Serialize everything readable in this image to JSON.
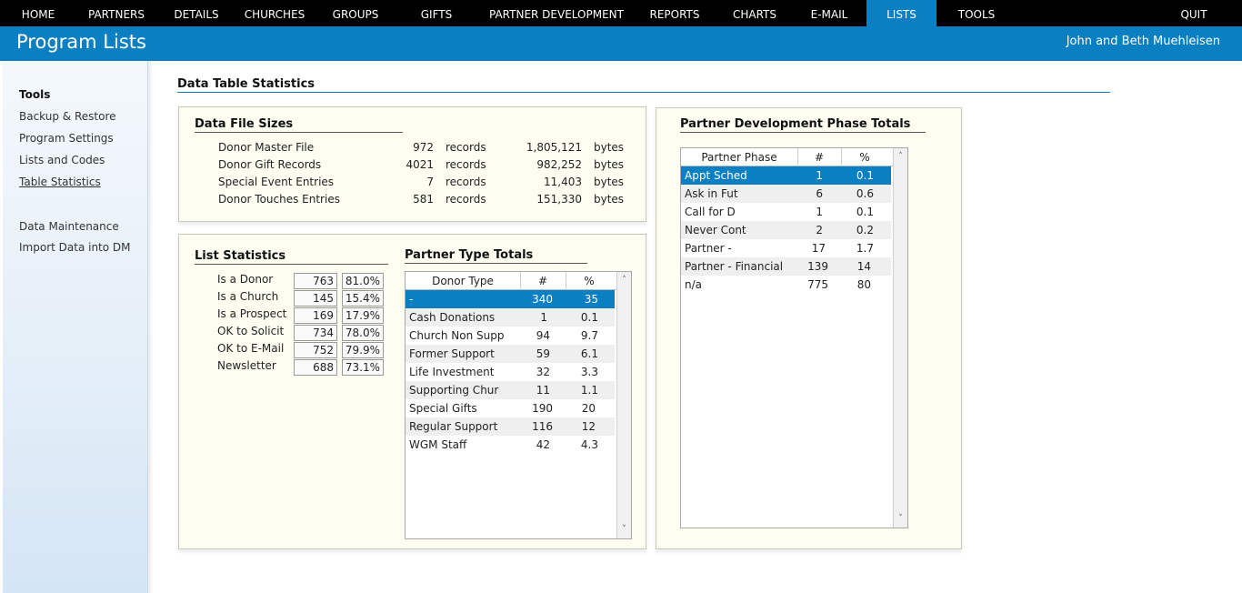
{
  "nav": {
    "items": [
      "HOME",
      "PARTNERS",
      "DETAILS",
      "CHURCHES",
      "GROUPS",
      "GIFTS",
      "PARTNER DEVELOPMENT",
      "REPORTS",
      "CHARTS",
      "E-MAIL",
      "LISTS",
      "TOOLS"
    ],
    "active": "LISTS",
    "quit": "QUIT"
  },
  "header": {
    "title": "Program Lists",
    "user": "John and Beth Muehleisen"
  },
  "sidebar": {
    "heading": "Tools",
    "links": [
      "Backup & Restore",
      "Program Settings",
      "Lists and Codes",
      "Table Statistics"
    ],
    "links2": [
      "Data Maintenance",
      "Import Data into DM"
    ]
  },
  "main": {
    "title": "Data Table Statistics"
  },
  "file_sizes": {
    "title": "Data File Sizes",
    "rows": [
      {
        "name": "Donor Master File",
        "count": "972",
        "unit": "records",
        "size": "1,805,121",
        "size_unit": "bytes"
      },
      {
        "name": "Donor Gift Records",
        "count": "4021",
        "unit": "records",
        "size": "982,252",
        "size_unit": "bytes"
      },
      {
        "name": "Special Event Entries",
        "count": "7",
        "unit": "records",
        "size": "11,403",
        "size_unit": "bytes"
      },
      {
        "name": "Donor Touches Entries",
        "count": "581",
        "unit": "records",
        "size": "151,330",
        "size_unit": "bytes"
      }
    ]
  },
  "list_stats": {
    "title": "List Statistics",
    "rows": [
      {
        "label": "Is a Donor",
        "count": "763",
        "pct": "81.0%"
      },
      {
        "label": "Is a Church",
        "count": "145",
        "pct": "15.4%"
      },
      {
        "label": "Is a Prospect",
        "count": "169",
        "pct": "17.9%"
      },
      {
        "label": "OK to Solicit",
        "count": "734",
        "pct": "78.0%"
      },
      {
        "label": "OK to E-Mail",
        "count": "752",
        "pct": "79.9%"
      },
      {
        "label": "Newsletter",
        "count": "688",
        "pct": "73.1%"
      }
    ]
  },
  "partner_type": {
    "title": "Partner Type Totals",
    "headers": [
      "Donor Type",
      "#",
      "%"
    ],
    "rows": [
      [
        "-",
        "340",
        "35"
      ],
      [
        "Cash Donations",
        "1",
        "0.1"
      ],
      [
        "Church Non Supp",
        "94",
        "9.7"
      ],
      [
        "Former Support",
        "59",
        "6.1"
      ],
      [
        "Life Investment",
        "32",
        "3.3"
      ],
      [
        "Supporting Chur",
        "11",
        "1.1"
      ],
      [
        "Special Gifts",
        "190",
        "20"
      ],
      [
        "Regular Support",
        "116",
        "12"
      ],
      [
        "WGM Staff",
        "42",
        "4.3"
      ]
    ],
    "selected": 0
  },
  "phase": {
    "title": "Partner Development Phase Totals",
    "headers": [
      "Partner Phase",
      "#",
      "%"
    ],
    "rows": [
      [
        "Appt Sched",
        "1",
        "0.1"
      ],
      [
        "Ask in Fut",
        "6",
        "0.6"
      ],
      [
        "Call for D",
        "1",
        "0.1"
      ],
      [
        "Never Cont",
        "2",
        "0.2"
      ],
      [
        "Partner -",
        "17",
        "1.7"
      ],
      [
        "Partner - Financial",
        "139",
        "14"
      ],
      [
        "n/a",
        "775",
        "80"
      ]
    ],
    "selected": 0
  },
  "icons": {
    "scroll_up": "chevron-up-icon",
    "scroll_down": "chevron-down-icon"
  },
  "colors": {
    "accent": "#0a7fc2",
    "nav_bg": "#000000",
    "panel_bg": "#fdfdf1"
  }
}
